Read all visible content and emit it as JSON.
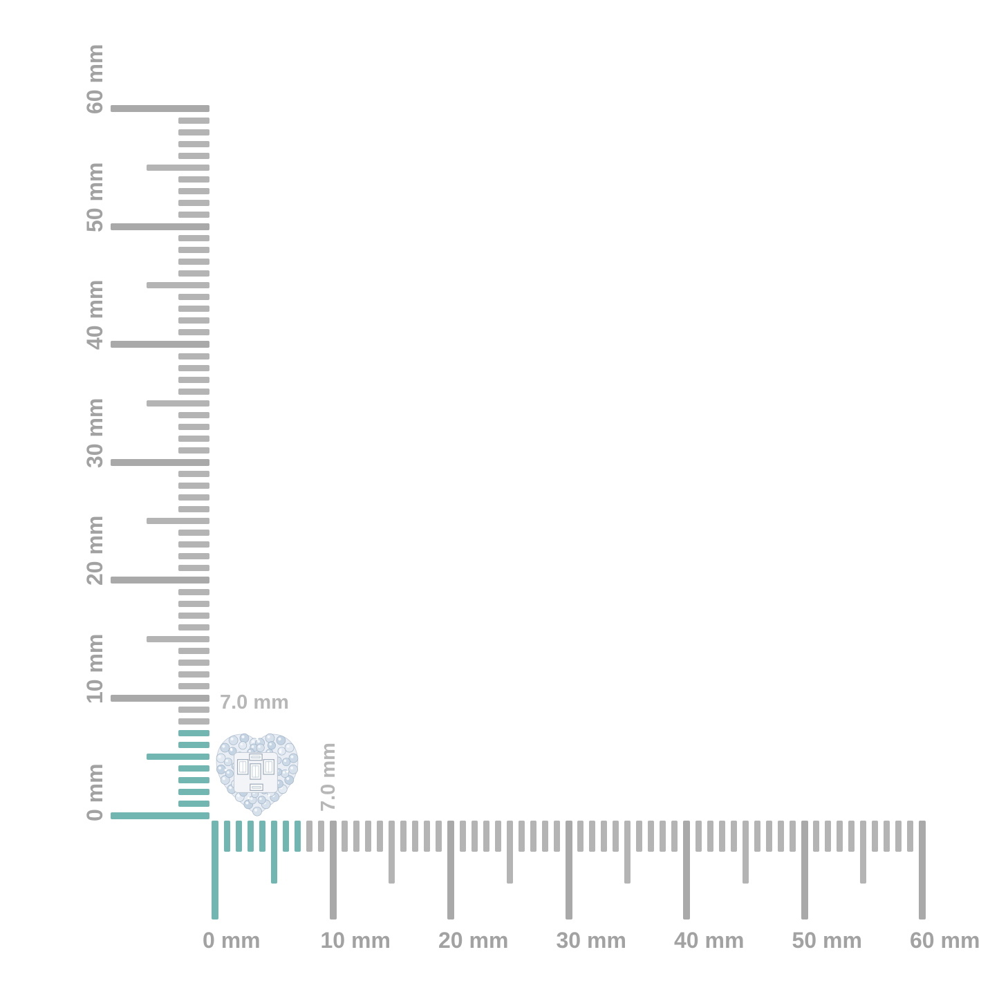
{
  "diagram": {
    "unit": "mm",
    "range_mm": 60,
    "tick_step_mm": 1,
    "half_tick_mm": 5,
    "major_tick_mm": 10,
    "highlight_extent_mm": 7,
    "ruler_labels": [
      "0 mm",
      "10 mm",
      "20 mm",
      "30 mm",
      "40 mm",
      "50 mm",
      "60 mm"
    ]
  },
  "measurement": {
    "width_label": "7.0 mm",
    "height_label": "7.0 mm"
  },
  "product": {
    "name": "heart-shaped pave diamond cluster with baguette center"
  },
  "colors": {
    "background": "#ffffff",
    "highlight_teal": "#72b6b2",
    "tick_gray": "#b4b4b4",
    "tick_gray_major": "#a9a9a9",
    "ruler_label_gray": "#a2a2a2",
    "measure_label_gray": "#b7b7b7"
  }
}
